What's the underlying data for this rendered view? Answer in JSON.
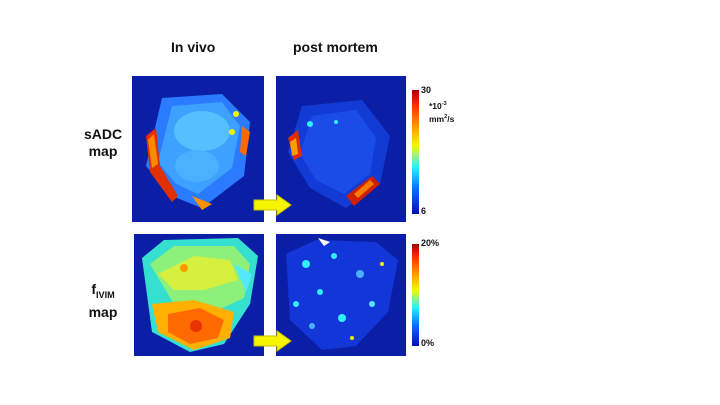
{
  "columns": {
    "in_vivo": "In vivo",
    "post_mortem": "post mortem"
  },
  "rows": {
    "sadc": {
      "line1": "sADC",
      "line2": "map"
    },
    "fivim": {
      "main": "f",
      "sub": "IVIM",
      "line2": "map"
    }
  },
  "sadc_colorbar": {
    "max": "30",
    "min": "6",
    "unit_line1": "*10",
    "unit_exp": "-3",
    "unit_line2": "mm",
    "unit_exp2": "2",
    "unit_line2_tail": "/s"
  },
  "fivim_colorbar": {
    "max": "20%",
    "min": "0%"
  },
  "colors": {
    "arrow": "#f5f500",
    "background_map": "#0a1fa6"
  }
}
